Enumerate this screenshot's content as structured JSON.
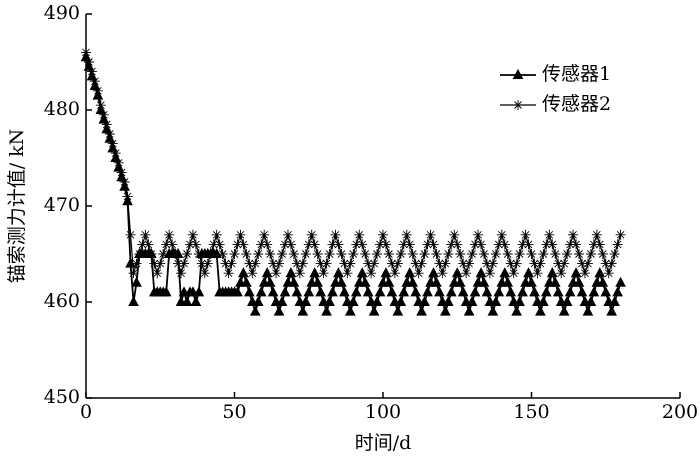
{
  "chart_data": {
    "type": "line",
    "x_label": "时间/d",
    "y_label": "锚索测力计值/ kN",
    "x": [
      0,
      1,
      2,
      3,
      4,
      5,
      6,
      7,
      8,
      9,
      10,
      11,
      12,
      13,
      14,
      15,
      16,
      17,
      18,
      19,
      20,
      21,
      22,
      23,
      24,
      25,
      26,
      27,
      28,
      29,
      30,
      31,
      32,
      33,
      34,
      35,
      36,
      37,
      38,
      39,
      40,
      41,
      42,
      43,
      44,
      45,
      46,
      47,
      48,
      49,
      50,
      51,
      52,
      53,
      54,
      55,
      56,
      57,
      58,
      59,
      60,
      61,
      62,
      63,
      64,
      65,
      66,
      67,
      68,
      69,
      70,
      71,
      72,
      73,
      74,
      75,
      76,
      77,
      78,
      79,
      80,
      81,
      82,
      83,
      84,
      85,
      86,
      87,
      88,
      89,
      90,
      91,
      92,
      93,
      94,
      95,
      96,
      97,
      98,
      99,
      100,
      101,
      102,
      103,
      104,
      105,
      106,
      107,
      108,
      109,
      110,
      111,
      112,
      113,
      114,
      115,
      116,
      117,
      118,
      119,
      120,
      121,
      122,
      123,
      124,
      125,
      126,
      127,
      128,
      129,
      130,
      131,
      132,
      133,
      134,
      135,
      136,
      137,
      138,
      139,
      140,
      141,
      142,
      143,
      144,
      145,
      146,
      147,
      148,
      149,
      150,
      151,
      152,
      153,
      154,
      155,
      156,
      157,
      158,
      159,
      160,
      161,
      162,
      163,
      164,
      165,
      166,
      167,
      168,
      169,
      170,
      171,
      172,
      173,
      174,
      175,
      176,
      177,
      178,
      179,
      180
    ],
    "series": [
      {
        "name": "传感器1",
        "color": "#000000",
        "marker": "triangle",
        "values": [
          485.5,
          484.5,
          483.5,
          482.5,
          481.5,
          480,
          479,
          478,
          477,
          476,
          475,
          474,
          473,
          472,
          470.5,
          464,
          460,
          462,
          465,
          465,
          465,
          465,
          465,
          461,
          461,
          461,
          461,
          461,
          465,
          465,
          465,
          465,
          460,
          461,
          460,
          461,
          461,
          460,
          461,
          465,
          465,
          465,
          465,
          465,
          465,
          461,
          461,
          461,
          461,
          461,
          461,
          461,
          462,
          463,
          462,
          461,
          460,
          459,
          460,
          461,
          462,
          463,
          462,
          461,
          460,
          459,
          460,
          461,
          462,
          463,
          462,
          461,
          460,
          459,
          460,
          461,
          462,
          463,
          462,
          461,
          460,
          459,
          460,
          461,
          462,
          463,
          462,
          461,
          460,
          459,
          460,
          461,
          462,
          463,
          462,
          461,
          460,
          459,
          460,
          461,
          462,
          463,
          462,
          461,
          460,
          459,
          460,
          461,
          462,
          463,
          462,
          461,
          460,
          459,
          460,
          461,
          462,
          463,
          462,
          461,
          460,
          459,
          460,
          461,
          462,
          463,
          462,
          461,
          460,
          459,
          460,
          461,
          462,
          463,
          462,
          461,
          460,
          459,
          460,
          461,
          462,
          463,
          462,
          461,
          460,
          459,
          460,
          461,
          462,
          463,
          462,
          461,
          460,
          459,
          460,
          461,
          462,
          463,
          462,
          461,
          460,
          459,
          460,
          461,
          462,
          463,
          462,
          461,
          460,
          459,
          460,
          461,
          462,
          463,
          462,
          461,
          460,
          459,
          460,
          461,
          462
        ]
      },
      {
        "name": "传感器2",
        "color": "#000000",
        "marker": "asterisk",
        "values": [
          486,
          485,
          484,
          483,
          482,
          480.5,
          479.5,
          478.5,
          477.5,
          476.5,
          475.5,
          474.5,
          473.5,
          472.5,
          471,
          467,
          463,
          464,
          465,
          466,
          467,
          466,
          465,
          464,
          463,
          464,
          465,
          466,
          467,
          466,
          465,
          464,
          463,
          464,
          465,
          466,
          467,
          466,
          465,
          464,
          463,
          464,
          465,
          466,
          467,
          466,
          465,
          464,
          463,
          464,
          465,
          466,
          467,
          466,
          465,
          464,
          463,
          464,
          465,
          466,
          467,
          466,
          465,
          464,
          463,
          464,
          465,
          466,
          467,
          466,
          465,
          464,
          463,
          464,
          465,
          466,
          467,
          466,
          465,
          464,
          463,
          464,
          465,
          466,
          467,
          466,
          465,
          464,
          463,
          464,
          465,
          466,
          467,
          466,
          465,
          464,
          463,
          464,
          465,
          466,
          467,
          466,
          465,
          464,
          463,
          464,
          465,
          466,
          467,
          466,
          465,
          464,
          463,
          464,
          465,
          466,
          467,
          466,
          465,
          464,
          463,
          464,
          465,
          466,
          467,
          466,
          465,
          464,
          463,
          464,
          465,
          466,
          467,
          466,
          465,
          464,
          463,
          464,
          465,
          466,
          467,
          466,
          465,
          464,
          463,
          464,
          465,
          466,
          467,
          466,
          465,
          464,
          463,
          464,
          465,
          466,
          467,
          466,
          465,
          464,
          463,
          464,
          465,
          466,
          467,
          466,
          465,
          464,
          463,
          464,
          465,
          466,
          467,
          466,
          465,
          464,
          463,
          464,
          465,
          466,
          467
        ]
      }
    ],
    "xlim": [
      0,
      200
    ],
    "xticks": [
      0,
      50,
      100,
      150,
      200
    ],
    "ylim": [
      450,
      490
    ],
    "yticks": [
      450,
      460,
      470,
      480,
      490
    ],
    "grid": false,
    "legend": "upper right"
  }
}
